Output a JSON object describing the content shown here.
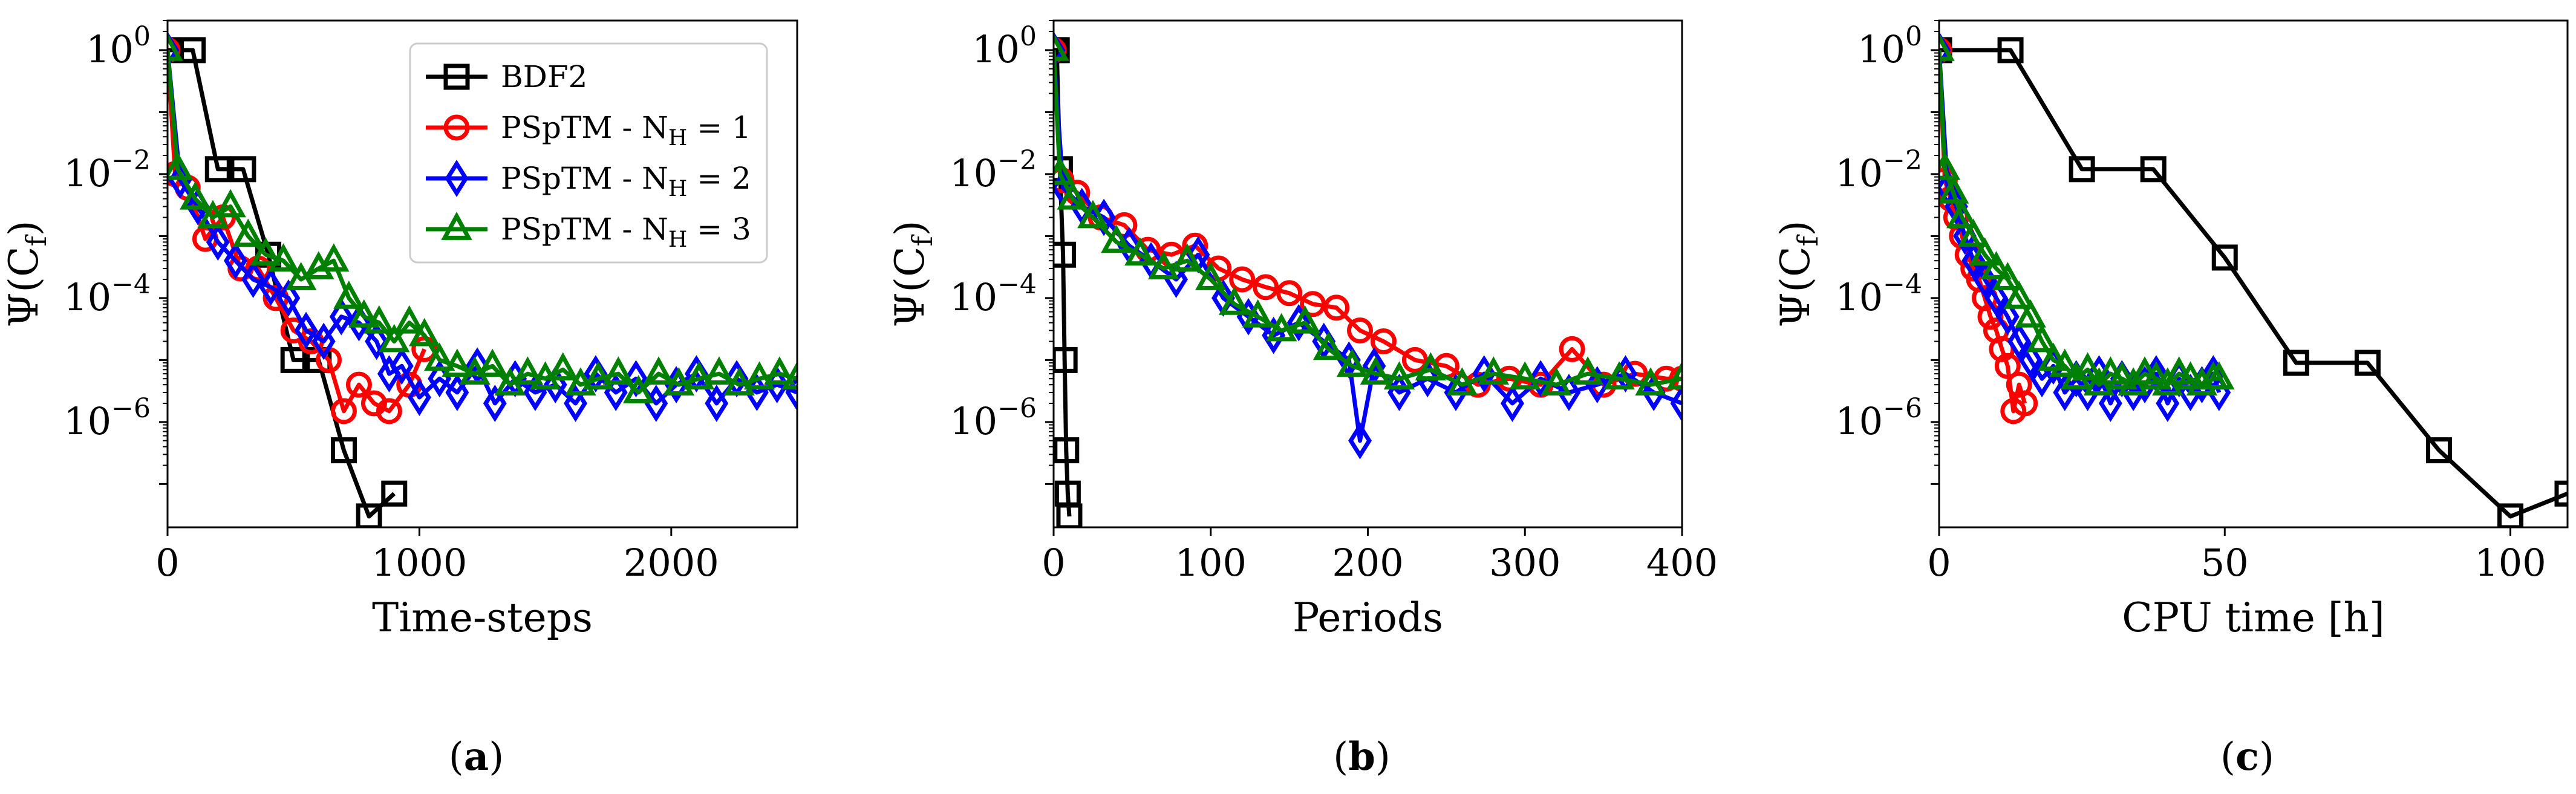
{
  "colors": {
    "BDF2": "#000000",
    "PSpTM - N_H = 1": "#ff0000",
    "PSpTM - N_H = 2": "#0000ff",
    "PSpTM - N_H = 3": "#008000"
  },
  "legend": {
    "entries": [
      {
        "label": "BDF2",
        "marker": "square"
      },
      {
        "label": "PSpTM - N",
        "sub": "H",
        "eq": "= 1",
        "marker": "circle"
      },
      {
        "label": "PSpTM - N",
        "sub": "H",
        "eq": "= 2",
        "marker": "diamond"
      },
      {
        "label": "PSpTM - N",
        "sub": "H",
        "eq": "= 3",
        "marker": "triangle"
      }
    ]
  },
  "ylabel": {
    "main": "Ψ(C",
    "sub": "f",
    "close": ")"
  },
  "ytick_labels": [
    {
      "base": "10",
      "exp": "0"
    },
    {
      "base": "10",
      "exp": "−2"
    },
    {
      "base": "10",
      "exp": "−4"
    },
    {
      "base": "10",
      "exp": "−6"
    }
  ],
  "chart_data": [
    {
      "type": "line",
      "caption": "a",
      "xlabel": "Time-steps",
      "ylabel": "Ψ(Cf)",
      "yscale": "log",
      "xlim": [
        0,
        2500
      ],
      "ylim": [
        2e-08,
        3
      ],
      "xticks": [
        0,
        1000,
        2000
      ],
      "yticks": [
        1,
        0.01,
        0.0001,
        1e-06
      ],
      "series": [
        {
          "name": "BDF2",
          "marker": "square",
          "x": [
            0,
            100,
            200,
            300,
            400,
            500,
            600,
            700,
            800,
            900
          ],
          "y": [
            1,
            1,
            0.012,
            0.012,
            0.0005,
            1e-05,
            1e-05,
            3.5e-07,
            3e-08,
            7e-08
          ]
        },
        {
          "name": "PSpTM - N_H = 1",
          "marker": "circle",
          "x": [
            0,
            30,
            80,
            150,
            220,
            290,
            360,
            430,
            500,
            570,
            640,
            700,
            760,
            820,
            880,
            960,
            1020
          ],
          "y": [
            1,
            0.01,
            0.006,
            0.0009,
            0.002,
            0.0003,
            0.0003,
            0.0001,
            3e-05,
            2e-05,
            1e-05,
            1.5e-06,
            4e-06,
            2e-06,
            1.5e-06,
            4e-06,
            1.5e-05
          ]
        },
        {
          "name": "PSpTM - N_H = 2",
          "marker": "diamond",
          "x": [
            0,
            50,
            120,
            200,
            270,
            340,
            410,
            480,
            550,
            620,
            690,
            760,
            830,
            880,
            930,
            1000,
            1080,
            1150,
            1230,
            1300,
            1380,
            1460,
            1540,
            1620,
            1700,
            1780,
            1860,
            1940,
            2020,
            2100,
            2180,
            2260,
            2340,
            2420,
            2500
          ],
          "y": [
            1,
            0.008,
            0.003,
            0.0008,
            0.0004,
            0.0002,
            0.00015,
            0.0001,
            3e-05,
            2e-05,
            5e-05,
            4e-05,
            2e-05,
            6e-06,
            8e-06,
            2.5e-06,
            5e-06,
            3e-06,
            8e-06,
            2e-06,
            5e-06,
            3e-06,
            4e-06,
            2e-06,
            6e-06,
            3e-06,
            5e-06,
            2e-06,
            4e-06,
            6e-06,
            2e-06,
            5e-06,
            3e-06,
            4e-06,
            3e-06
          ]
        },
        {
          "name": "PSpTM - N_H = 3",
          "marker": "triangle",
          "x": [
            0,
            40,
            110,
            180,
            250,
            320,
            390,
            460,
            530,
            600,
            660,
            720,
            780,
            840,
            900,
            960,
            1020,
            1080,
            1150,
            1220,
            1290,
            1360,
            1430,
            1500,
            1570,
            1640,
            1710,
            1790,
            1870,
            1950,
            2030,
            2110,
            2190,
            2270,
            2350,
            2430,
            2500
          ],
          "y": [
            1,
            0.012,
            0.004,
            0.002,
            0.003,
            0.001,
            0.0005,
            0.0004,
            0.0002,
            0.0003,
            0.0004,
            0.0001,
            5e-05,
            4e-05,
            2e-05,
            4e-05,
            2.5e-05,
            1e-05,
            8e-06,
            6e-06,
            8e-06,
            4e-06,
            6e-06,
            5e-06,
            7e-06,
            4e-06,
            5e-06,
            6e-06,
            3e-06,
            6e-06,
            4e-06,
            5e-06,
            6e-06,
            4e-06,
            5e-06,
            6e-06,
            5e-06
          ]
        }
      ]
    },
    {
      "type": "line",
      "caption": "b",
      "xlabel": "Periods",
      "ylabel": "Ψ(Cf)",
      "yscale": "log",
      "xlim": [
        0,
        400
      ],
      "ylim": [
        2e-08,
        3
      ],
      "xticks": [
        0,
        100,
        200,
        300,
        400
      ],
      "yticks": [
        1,
        0.01,
        0.0001,
        1e-06
      ],
      "series": [
        {
          "name": "BDF2",
          "marker": "square",
          "x": [
            0,
            2,
            4,
            6,
            7,
            8,
            9,
            10
          ],
          "y": [
            1,
            1,
            0.012,
            0.0005,
            1e-05,
            3.5e-07,
            7e-08,
            3e-08
          ]
        },
        {
          "name": "PSpTM - N_H = 1",
          "marker": "circle",
          "x": [
            0,
            5,
            15,
            30,
            45,
            60,
            75,
            90,
            105,
            120,
            135,
            150,
            165,
            180,
            195,
            210,
            230,
            250,
            270,
            290,
            310,
            330,
            350,
            370,
            390,
            400
          ],
          "y": [
            1,
            0.008,
            0.005,
            0.002,
            0.0015,
            0.0006,
            0.0005,
            0.0007,
            0.0003,
            0.0002,
            0.00015,
            0.00012,
            8e-05,
            7e-05,
            3e-05,
            2e-05,
            1e-05,
            8e-06,
            4e-06,
            5e-06,
            4e-06,
            1.5e-05,
            4e-06,
            6e-06,
            5e-06,
            5e-06
          ]
        },
        {
          "name": "PSpTM - N_H = 2",
          "marker": "diamond",
          "x": [
            0,
            6,
            18,
            32,
            48,
            62,
            78,
            92,
            108,
            124,
            140,
            156,
            172,
            188,
            195,
            204,
            220,
            238,
            256,
            274,
            292,
            310,
            328,
            346,
            364,
            382,
            400
          ],
          "y": [
            1,
            0.006,
            0.003,
            0.002,
            0.0007,
            0.0004,
            0.0002,
            0.0005,
            0.0001,
            5e-05,
            2.5e-05,
            4e-05,
            2e-05,
            1e-05,
            5e-07,
            8e-06,
            3e-06,
            5e-06,
            3e-06,
            6e-06,
            2e-06,
            5e-06,
            3e-06,
            4e-06,
            6e-06,
            3e-06,
            2e-06
          ]
        },
        {
          "name": "PSpTM - N_H = 3",
          "marker": "triangle",
          "x": [
            0,
            4,
            12,
            25,
            40,
            55,
            70,
            85,
            100,
            115,
            130,
            145,
            160,
            175,
            190,
            205,
            220,
            240,
            260,
            280,
            300,
            320,
            340,
            360,
            380,
            400
          ],
          "y": [
            1,
            0.01,
            0.004,
            0.002,
            0.0008,
            0.0005,
            0.0003,
            0.0004,
            0.0002,
            8e-05,
            5e-05,
            3e-05,
            4e-05,
            1.5e-05,
            8e-06,
            6e-06,
            5e-06,
            7e-06,
            4e-06,
            6e-06,
            5e-06,
            4e-06,
            6e-06,
            5e-06,
            4e-06,
            5e-06
          ]
        }
      ]
    },
    {
      "type": "line",
      "caption": "c",
      "xlabel": "CPU time [h]",
      "ylabel": "Ψ(Cf)",
      "yscale": "log",
      "xlim": [
        0,
        110
      ],
      "ylim": [
        2e-08,
        3
      ],
      "xticks": [
        0,
        50,
        100
      ],
      "yticks": [
        1,
        0.01,
        0.0001,
        1e-06
      ],
      "series": [
        {
          "name": "BDF2",
          "marker": "square",
          "x": [
            0,
            12.5,
            25,
            37.5,
            50,
            62.5,
            75,
            87.5,
            100,
            110
          ],
          "y": [
            1,
            1,
            0.012,
            0.012,
            0.00045,
            9e-06,
            9e-06,
            3.5e-07,
            3e-08,
            7e-08
          ]
        },
        {
          "name": "PSpTM - N_H = 1",
          "marker": "circle",
          "x": [
            0,
            1,
            2,
            3,
            4,
            5,
            6,
            7,
            8,
            9,
            10,
            11,
            12,
            13,
            14,
            15
          ],
          "y": [
            1,
            0.008,
            0.004,
            0.002,
            0.001,
            0.0005,
            0.0003,
            0.0002,
            0.0001,
            5e-05,
            3e-05,
            1.5e-05,
            8e-06,
            1.5e-06,
            4e-06,
            2e-06
          ]
        },
        {
          "name": "PSpTM - N_H = 2",
          "marker": "diamond",
          "x": [
            0,
            1.5,
            3,
            4.5,
            6,
            8,
            10,
            12,
            14,
            16,
            18,
            20,
            22,
            24,
            26,
            28,
            30,
            32,
            34,
            36,
            38,
            40,
            42,
            44,
            46,
            48,
            49
          ],
          "y": [
            1,
            0.006,
            0.003,
            0.001,
            0.0004,
            0.0002,
            0.0001,
            5e-05,
            2e-05,
            1e-05,
            5e-06,
            8e-06,
            3e-06,
            5e-06,
            3e-06,
            6e-06,
            2e-06,
            5e-06,
            3e-06,
            4e-06,
            6e-06,
            2e-06,
            5e-06,
            3e-06,
            4e-06,
            6e-06,
            3e-06
          ]
        },
        {
          "name": "PSpTM - N_H = 3",
          "marker": "triangle",
          "x": [
            0,
            1,
            2.5,
            4,
            6,
            8,
            10,
            12,
            14,
            16,
            18,
            20,
            22,
            24,
            26,
            28,
            30,
            32,
            34,
            36,
            38,
            40,
            42,
            44,
            46,
            48,
            49
          ],
          "y": [
            1,
            0.012,
            0.005,
            0.002,
            0.001,
            0.0005,
            0.0003,
            0.0002,
            0.0001,
            5e-05,
            2e-05,
            1e-05,
            8e-06,
            5e-06,
            7e-06,
            4e-06,
            6e-06,
            5e-06,
            4e-06,
            6e-06,
            5e-06,
            4e-06,
            6e-06,
            5e-06,
            4e-06,
            5e-06,
            5e-06
          ]
        }
      ]
    }
  ]
}
